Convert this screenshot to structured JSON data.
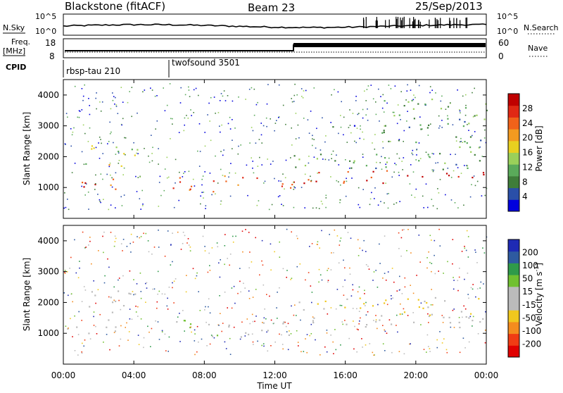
{
  "header": {
    "station": "Blackstone (fitACF)",
    "beam": "Beam 23",
    "date": "25/Sep/2013"
  },
  "panels": {
    "nsky_label": "N.Sky",
    "nsky_ticks": [
      "10^5",
      "10^0"
    ],
    "nsearch_label": "N.Search",
    "nsearch_ticks": [
      "10^5",
      "10^0"
    ],
    "freq_label": "Freq.",
    "freq_unit": "[MHz]",
    "freq_ticks": [
      "18",
      "8"
    ],
    "nave_label": "Nave",
    "nave_ticks": [
      "60",
      "0"
    ],
    "cpid_label": "CPID",
    "cpid_segments": [
      {
        "name": "rbsp-tau 210",
        "start_h": 0,
        "end_h": 6
      },
      {
        "name": "twofsound 3501",
        "start_h": 6,
        "end_h": 24
      }
    ]
  },
  "chart_data": [
    {
      "type": "heatmap",
      "title": "",
      "xlabel": "Time UT",
      "ylabel": "Slant Range [km]",
      "xlim": [
        0,
        24
      ],
      "ylim": [
        0,
        4500
      ],
      "x_ticks": [
        "00:00",
        "04:00",
        "08:00",
        "12:00",
        "16:00",
        "20:00",
        "00:00"
      ],
      "y_ticks": [
        1000,
        2000,
        3000,
        4000
      ],
      "colorbar": {
        "label": "Power [dB]",
        "ticks": [
          "28",
          "24",
          "20",
          "16",
          "12",
          "8",
          "4"
        ],
        "range": [
          0,
          30
        ],
        "colors": [
          "#0000dd",
          "#2a4fa8",
          "#3f7d3a",
          "#5aaa5a",
          "#9ad05a",
          "#e8d020",
          "#f29a20",
          "#f0621a",
          "#e02814",
          "#c00000"
        ]
      },
      "echo_regions": [
        {
          "t_start": 0.0,
          "t_end": 3.0,
          "r_start": 950,
          "r_end": 1500,
          "level": 24
        },
        {
          "t_start": 0.5,
          "t_end": 4.2,
          "r_start": 1700,
          "r_end": 2400,
          "level": 14
        },
        {
          "t_start": 3.8,
          "t_end": 4.4,
          "r_start": 550,
          "r_end": 650,
          "level": 26
        },
        {
          "t_start": 6.0,
          "t_end": 11.0,
          "r_start": 850,
          "r_end": 1450,
          "level": 24
        },
        {
          "t_start": 11.0,
          "t_end": 13.0,
          "r_start": 850,
          "r_end": 1250,
          "level": 24
        },
        {
          "t_start": 13.0,
          "t_end": 24.0,
          "r_start": 1150,
          "r_end": 1600,
          "level": 26
        },
        {
          "t_start": 13.0,
          "t_end": 24.0,
          "r_start": 1600,
          "r_end": 2200,
          "level": 10
        },
        {
          "t_start": 13.0,
          "t_end": 24.0,
          "r_start": 2950,
          "r_end": 3050,
          "level": 6
        },
        {
          "t_start": 18.0,
          "t_end": 24.0,
          "r_start": 2300,
          "r_end": 3900,
          "level": 10
        }
      ]
    },
    {
      "type": "heatmap",
      "title": "",
      "xlabel": "Time UT",
      "ylabel": "Slant Range [km]",
      "xlim": [
        0,
        24
      ],
      "ylim": [
        0,
        4500
      ],
      "x_ticks": [
        "00:00",
        "04:00",
        "08:00",
        "12:00",
        "16:00",
        "20:00",
        "00:00"
      ],
      "y_ticks": [
        1000,
        2000,
        3000,
        4000
      ],
      "colorbar": {
        "label": "Velocity [m s",
        "label_sup": "-1",
        "label_end": "]",
        "ticks": [
          "200",
          "100",
          "50",
          "15",
          "-15",
          "-50",
          "-100",
          "-200"
        ],
        "range": [
          -250,
          250
        ],
        "colors": [
          "#e00000",
          "#f03c14",
          "#f48c1e",
          "#f0c81e",
          "#bbbbbb",
          "#bbbbbb",
          "#70c030",
          "#2f9a4a",
          "#2e5aa0",
          "#1e2ab4"
        ]
      },
      "echo_regions": [
        {
          "t_start": 0.0,
          "t_end": 3.0,
          "r_start": 950,
          "r_end": 1500,
          "velocity": 0
        },
        {
          "t_start": 0.5,
          "t_end": 4.2,
          "r_start": 1700,
          "r_end": 2400,
          "velocity": 5
        },
        {
          "t_start": 3.8,
          "t_end": 4.4,
          "r_start": 550,
          "r_end": 650,
          "velocity": 0
        },
        {
          "t_start": 6.0,
          "t_end": 9.0,
          "r_start": 850,
          "r_end": 1450,
          "velocity": 60
        },
        {
          "t_start": 9.0,
          "t_end": 13.0,
          "r_start": 850,
          "r_end": 1450,
          "velocity": 0
        },
        {
          "t_start": 13.0,
          "t_end": 24.0,
          "r_start": 1150,
          "r_end": 1600,
          "velocity": 0
        },
        {
          "t_start": 13.0,
          "t_end": 24.0,
          "r_start": 1600,
          "r_end": 2200,
          "velocity": -60
        }
      ]
    }
  ]
}
